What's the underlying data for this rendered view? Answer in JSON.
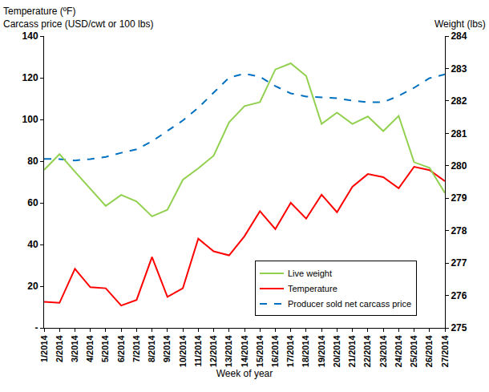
{
  "chart_data": {
    "type": "line",
    "x_label": "Week of year",
    "y_label": "Temperature (ºF)\nCarcass price (USD/cwt or 100 lbs)",
    "y2_label": "Weight (lbs)",
    "categories": [
      "1/2014",
      "2/2014",
      "3/2014",
      "4/2014",
      "5/2014",
      "6/2014",
      "7/2014",
      "8/2014",
      "9/2014",
      "10/2014",
      "11/2014",
      "12/2014",
      "13/2014",
      "14/2014",
      "15/2014",
      "16/2014",
      "17/2014",
      "18/2014",
      "19/2014",
      "20/2014",
      "21/2014",
      "22/2014",
      "23/2014",
      "24/2014",
      "25/2014",
      "26/2014",
      "27/2014"
    ],
    "series": [
      {
        "name": "Live weight",
        "color": "#92d050",
        "axis": "y2",
        "line_style": "solid",
        "values": [
          279.87,
          280.36,
          279.82,
          279.3,
          278.76,
          279.1,
          278.9,
          278.44,
          278.64,
          279.57,
          279.92,
          280.31,
          281.34,
          281.84,
          281.96,
          282.97,
          283.16,
          282.77,
          281.29,
          281.64,
          281.29,
          281.52,
          281.07,
          281.54,
          280.11,
          279.94,
          279.16
        ]
      },
      {
        "name": "Temperature",
        "color": "#ff0000",
        "axis": "y",
        "line_style": "solid",
        "values": [
          12.5,
          12,
          28.3,
          19.5,
          19,
          10.7,
          13.4,
          34,
          14.9,
          19,
          42.8,
          36.7,
          34.8,
          44,
          56,
          47.4,
          60,
          52.4,
          63.9,
          55.5,
          67.7,
          73.8,
          72.3,
          67,
          77.3,
          75.7,
          70.4
        ]
      },
      {
        "name": "Producer sold net carcass price",
        "color": "#0070c0",
        "axis": "y",
        "line_style": "dashed",
        "values": [
          81.1,
          81,
          80.3,
          81,
          82,
          84,
          85.7,
          89.5,
          94.5,
          99.5,
          105.6,
          112.9,
          120.1,
          122,
          120.5,
          116,
          112.5,
          111,
          110.5,
          110.2,
          109,
          108.3,
          108.3,
          111.3,
          115.2,
          119.8,
          121.6
        ]
      }
    ],
    "ylim": [
      0,
      140
    ],
    "yticks": [
      {
        "value": 0,
        "label": "-"
      },
      20,
      40,
      60,
      80,
      100,
      120,
      140
    ],
    "y2lim": [
      275,
      284
    ],
    "y2ticks": [
      275,
      276,
      277,
      278,
      279,
      280,
      281,
      282,
      283,
      284
    ],
    "grid": false,
    "legend": "lower right"
  }
}
